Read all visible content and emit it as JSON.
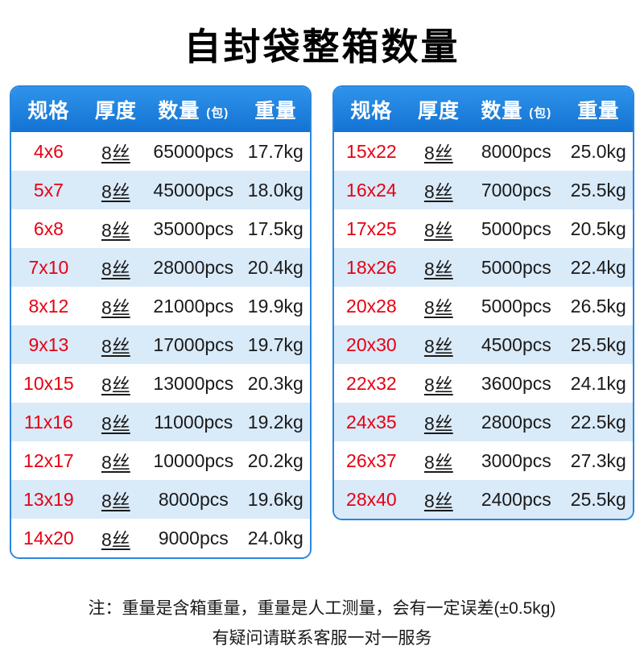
{
  "title": "自封袋整箱数量",
  "colors": {
    "header_blue": "#1a7ede",
    "border_blue": "#2a86df",
    "row_alt_blue": "#d9eaf9",
    "spec_red": "#e60012"
  },
  "tables": [
    {
      "headers": {
        "spec": "规格",
        "thickness": "厚度",
        "quantity": "数量",
        "quantity_unit": "(包)",
        "weight": "重量"
      },
      "rows": [
        [
          "4x6",
          "8丝",
          "65000pcs",
          "17.7kg"
        ],
        [
          "5x7",
          "8丝",
          "45000pcs",
          "18.0kg"
        ],
        [
          "6x8",
          "8丝",
          "35000pcs",
          "17.5kg"
        ],
        [
          "7x10",
          "8丝",
          "28000pcs",
          "20.4kg"
        ],
        [
          "8x12",
          "8丝",
          "21000pcs",
          "19.9kg"
        ],
        [
          "9x13",
          "8丝",
          "17000pcs",
          "19.7kg"
        ],
        [
          "10x15",
          "8丝",
          "13000pcs",
          "20.3kg"
        ],
        [
          "11x16",
          "8丝",
          "11000pcs",
          "19.2kg"
        ],
        [
          "12x17",
          "8丝",
          "10000pcs",
          "20.2kg"
        ],
        [
          "13x19",
          "8丝",
          "8000pcs",
          "19.6kg"
        ],
        [
          "14x20",
          "8丝",
          "9000pcs",
          "24.0kg"
        ]
      ]
    },
    {
      "headers": {
        "spec": "规格",
        "thickness": "厚度",
        "quantity": "数量",
        "quantity_unit": "(包)",
        "weight": "重量"
      },
      "rows": [
        [
          "15x22",
          "8丝",
          "8000pcs",
          "25.0kg"
        ],
        [
          "16x24",
          "8丝",
          "7000pcs",
          "25.5kg"
        ],
        [
          "17x25",
          "8丝",
          "5000pcs",
          "20.5kg"
        ],
        [
          "18x26",
          "8丝",
          "5000pcs",
          "22.4kg"
        ],
        [
          "20x28",
          "8丝",
          "5000pcs",
          "26.5kg"
        ],
        [
          "20x30",
          "8丝",
          "4500pcs",
          "25.5kg"
        ],
        [
          "22x32",
          "8丝",
          "3600pcs",
          "24.1kg"
        ],
        [
          "24x35",
          "8丝",
          "2800pcs",
          "22.5kg"
        ],
        [
          "26x37",
          "8丝",
          "3000pcs",
          "27.3kg"
        ],
        [
          "28x40",
          "8丝",
          "2400pcs",
          "25.5kg"
        ]
      ]
    }
  ],
  "footer": {
    "line1": "注：重量是含箱重量，重量是人工测量，会有一定误差(±0.5kg)",
    "line2": "有疑问请联系客服一对一服务"
  }
}
